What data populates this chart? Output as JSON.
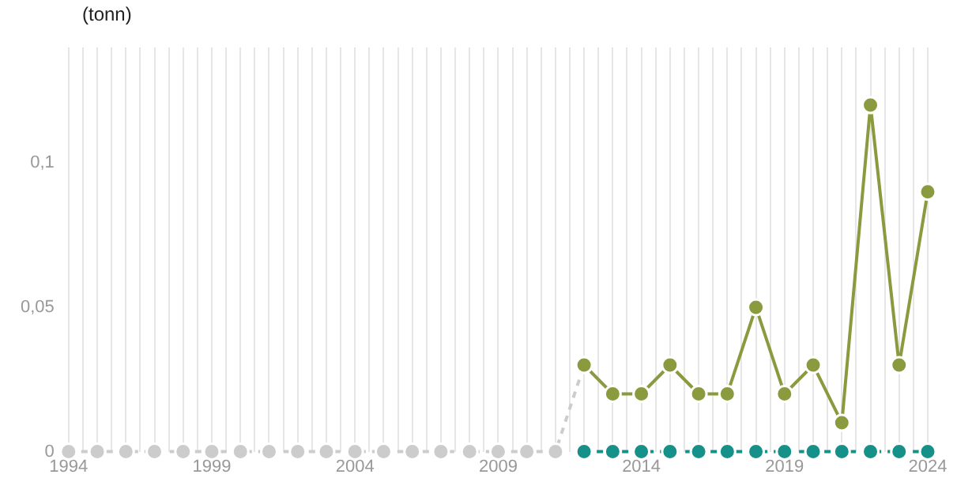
{
  "chart_data": {
    "type": "line",
    "ylabel": "(tonn)",
    "xlim": [
      1994,
      2024
    ],
    "xticks": [
      1994,
      {
        "value": 1994.5,
        "label": null
      },
      {
        "value": 1995,
        "label": null
      },
      {
        "value": 1995.5,
        "label": null
      },
      {
        "value": 1996,
        "label": null
      },
      {
        "value": 1996.5,
        "label": null
      },
      {
        "value": 1997,
        "label": null
      },
      {
        "value": 1997.5,
        "label": null
      },
      {
        "value": 1998,
        "label": null
      },
      {
        "value": 1998.5,
        "label": null
      },
      1999,
      {
        "value": 1999.5,
        "label": null
      },
      {
        "value": 2000,
        "label": null
      },
      {
        "value": 2000.5,
        "label": null
      },
      {
        "value": 2001,
        "label": null
      },
      {
        "value": 2001.5,
        "label": null
      },
      {
        "value": 2002,
        "label": null
      },
      {
        "value": 2002.5,
        "label": null
      },
      {
        "value": 2003,
        "label": null
      },
      {
        "value": 2003.5,
        "label": null
      },
      2004,
      {
        "value": 2004.5,
        "label": null
      },
      {
        "value": 2005,
        "label": null
      },
      {
        "value": 2005.5,
        "label": null
      },
      {
        "value": 2006,
        "label": null
      },
      {
        "value": 2006.5,
        "label": null
      },
      {
        "value": 2007,
        "label": null
      },
      {
        "value": 2007.5,
        "label": null
      },
      {
        "value": 2008,
        "label": null
      },
      {
        "value": 2008.5,
        "label": null
      },
      2009,
      {
        "value": 2009.5,
        "label": null
      },
      {
        "value": 2010,
        "label": null
      },
      {
        "value": 2010.5,
        "label": null
      },
      {
        "value": 2011,
        "label": null
      },
      {
        "value": 2011.5,
        "label": null
      },
      {
        "value": 2012,
        "label": null
      },
      {
        "value": 2012.5,
        "label": null
      },
      {
        "value": 2013,
        "label": null
      },
      {
        "value": 2013.5,
        "label": null
      },
      2014,
      {
        "value": 2014.5,
        "label": null
      },
      {
        "value": 2015,
        "label": null
      },
      {
        "value": 2015.5,
        "label": null
      },
      {
        "value": 2016,
        "label": null
      },
      {
        "value": 2016.5,
        "label": null
      },
      {
        "value": 2017,
        "label": null
      },
      {
        "value": 2017.5,
        "label": null
      },
      {
        "value": 2018,
        "label": null
      },
      {
        "value": 2018.5,
        "label": null
      },
      2019,
      {
        "value": 2019.5,
        "label": null
      },
      {
        "value": 2020,
        "label": null
      },
      {
        "value": 2020.5,
        "label": null
      },
      {
        "value": 2021,
        "label": null
      },
      {
        "value": 2021.5,
        "label": null
      },
      {
        "value": 2022,
        "label": null
      },
      {
        "value": 2022.5,
        "label": null
      },
      {
        "value": 2023,
        "label": null
      },
      {
        "value": 2023.5,
        "label": null
      },
      2024
    ],
    "ylim": [
      0,
      0.14
    ],
    "yticks": [
      0,
      {
        "value": 0.05,
        "label": "0,05"
      },
      {
        "value": 0.1,
        "label": "0,1"
      }
    ],
    "grid": "x",
    "legend": false,
    "marker": "circle",
    "series": [
      {
        "color": "#cccccc",
        "line_style": "dashed",
        "x": [
          1994,
          1995,
          1996,
          1997,
          1998,
          1999,
          2000,
          2001,
          2002,
          2003,
          2004,
          2005,
          2006,
          2007,
          2008,
          2009,
          2010,
          2011,
          2012
        ],
        "values": [
          0,
          0,
          0,
          0,
          0,
          0,
          0,
          0,
          0,
          0,
          0,
          0,
          0,
          0,
          0,
          0,
          0,
          0,
          0.03
        ]
      },
      {
        "color": "#8a9a3f",
        "line_style": "solid",
        "x": [
          2012,
          2013,
          2014,
          2015,
          2016,
          2017,
          2018,
          2019,
          2020,
          2021,
          2022,
          2023,
          2024
        ],
        "values": [
          0.03,
          0.02,
          0.02,
          0.03,
          0.02,
          0.02,
          0.05,
          0.02,
          0.03,
          0.01,
          0.12,
          0.03,
          0.09
        ]
      },
      {
        "color": "#16918a",
        "line_style": "dashed",
        "x": [
          2012,
          2013,
          2014,
          2015,
          2016,
          2017,
          2018,
          2019,
          2020,
          2021,
          2022,
          2023,
          2024
        ],
        "values": [
          0,
          0,
          0,
          0,
          0,
          0,
          0,
          0,
          0,
          0,
          0,
          0,
          0
        ]
      }
    ]
  }
}
